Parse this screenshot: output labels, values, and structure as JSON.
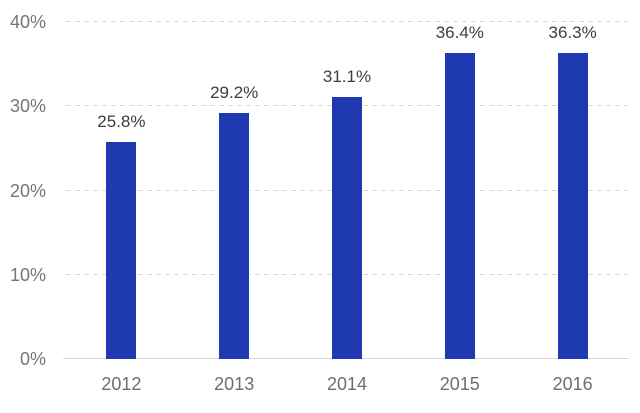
{
  "chart_data": {
    "type": "bar",
    "title": "",
    "xlabel": "",
    "ylabel": "",
    "categories": [
      "2012",
      "2013",
      "2014",
      "2015",
      "2016"
    ],
    "values": [
      25.8,
      29.2,
      31.1,
      36.4,
      36.3
    ],
    "value_labels": [
      "25.8%",
      "29.2%",
      "31.1%",
      "36.4%",
      "36.3%"
    ],
    "ylim": [
      0,
      40
    ],
    "yticks": [
      {
        "value": 0,
        "label": "0%"
      },
      {
        "value": 10,
        "label": "10%"
      },
      {
        "value": 20,
        "label": "20%"
      },
      {
        "value": 30,
        "label": "30%"
      },
      {
        "value": 40,
        "label": "40%"
      }
    ],
    "grid": "horizontal-dashed",
    "legend_position": "none",
    "bar_color": "#1f3ab0"
  },
  "colors": {
    "bar": "#1f3ab0",
    "gridline": "#d9d9d9",
    "axis_line": "#d8d8d8",
    "y_tick_label": "#757575",
    "x_tick_label": "#6e6e6e",
    "value_label": "#3d3d3d",
    "background": "#ffffff"
  }
}
